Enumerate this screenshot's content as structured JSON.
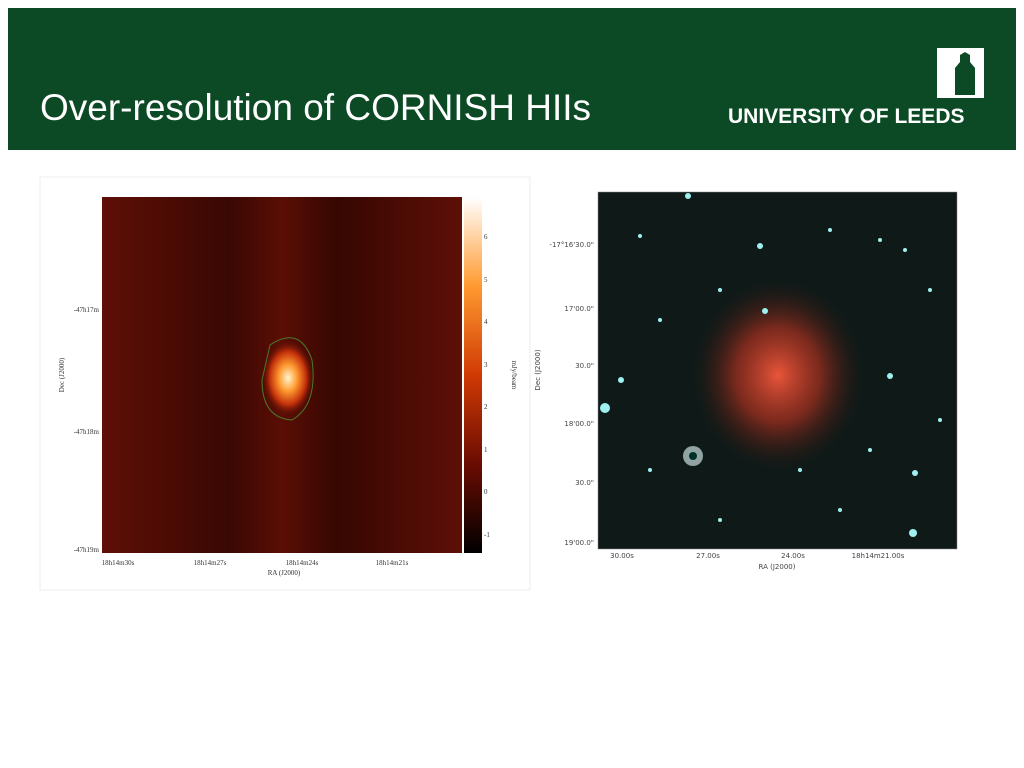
{
  "header": {
    "title": "Over-resolution of CORNISH HIIs",
    "logo_text": "UNIVERSITY OF LEEDS"
  },
  "left_figure": {
    "x_axis_label": "RA (J2000)",
    "y_axis_label": "Dec (J2000)",
    "x_tick_labels": [
      "18h14m30s",
      "18h14m27s",
      "18h14m24s",
      "18h14m21s"
    ],
    "y_tick_labels": [
      "-47h17m",
      "-47h18m",
      "-47h19m"
    ],
    "colorbar_label": "mJy/beam",
    "colorbar_tick_labels": [
      "6",
      "5",
      "4",
      "3",
      "2",
      "1",
      "0",
      "-1"
    ]
  },
  "right_figure": {
    "x_axis_label": "RA (J2000)",
    "y_axis_label": "Dec (J2000)",
    "x_tick_labels": [
      "30.00s",
      "27.00s",
      "24.00s",
      "18h14m21.00s"
    ],
    "y_tick_labels": [
      "-17°16'30.0\"",
      "17'00.0\"",
      "30.0\"",
      "18'00.0\"",
      "30.0\"",
      "19'00.0\""
    ]
  }
}
